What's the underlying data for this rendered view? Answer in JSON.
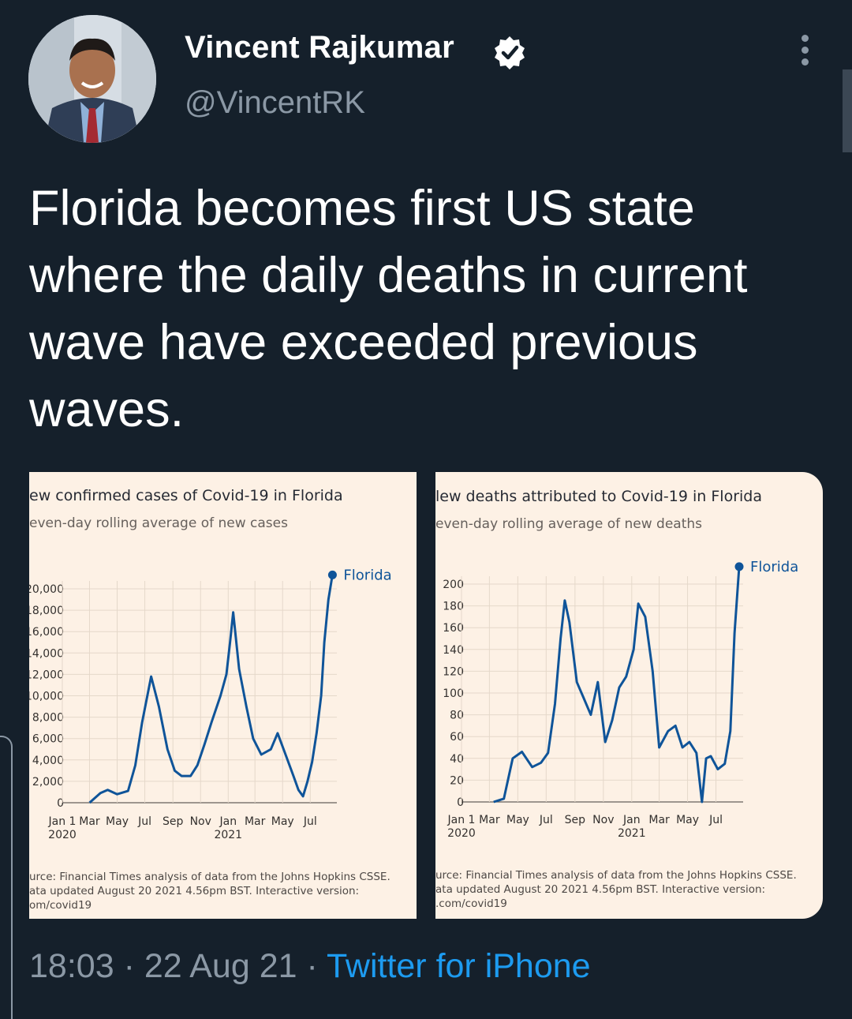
{
  "author": {
    "name": "Vincent Rajkumar",
    "handle": "@VincentRK",
    "verified": true,
    "avatar": "author-avatar-photo"
  },
  "tweet": {
    "text_lines": [
      "Florida becomes first US state",
      "where the daily deaths in current",
      "wave have exceeded previous",
      "waves."
    ]
  },
  "meta": {
    "time": "18:03",
    "sep1": "·",
    "date": "22 Aug 21",
    "sep2": "·",
    "source": "Twitter for iPhone"
  },
  "colors": {
    "background": "#15202b",
    "link": "#1d9bf0",
    "muted": "#8b98a5",
    "chart_bg": "#fdf1e5",
    "series": "#0f5499"
  },
  "icons": {
    "verified": "verified-badge-icon",
    "more": "more-options-icon"
  },
  "chart_data": [
    {
      "type": "line",
      "title": "ew confirmed cases of Covid-19 in Florida",
      "subtitle": "even-day rolling average of new cases",
      "y_tick_labels": [
        "0",
        "2,000",
        "4,000",
        "6,000",
        "8,000",
        "10,000",
        "12,000",
        "14,000",
        "16,000",
        "18,000",
        "20,000"
      ],
      "y_tick_label_top": "20,000",
      "ylim": [
        0,
        20000
      ],
      "x_tick_labels": [
        "Jan 1",
        "Mar",
        "May",
        "Jul",
        "Sep",
        "Nov",
        "Jan",
        "Mar",
        "May",
        "Jul"
      ],
      "x_year_labels": [
        "2020",
        "2021"
      ],
      "legend": "Florida",
      "legend_position": "top-right",
      "source_lines": [
        "urce: Financial Times analysis of data from the Johns Hopkins CSSE.",
        "ata updated August 20 2021 4.56pm BST. Interactive version:",
        "om/covid19"
      ],
      "series": [
        {
          "name": "Florida",
          "x": [
            "2020-03-01",
            "2020-03-25",
            "2020-04-10",
            "2020-05-01",
            "2020-05-25",
            "2020-06-10",
            "2020-06-25",
            "2020-07-15",
            "2020-08-01",
            "2020-08-20",
            "2020-09-05",
            "2020-09-20",
            "2020-10-10",
            "2020-10-25",
            "2020-11-10",
            "2020-11-25",
            "2020-12-15",
            "2020-12-28",
            "2021-01-05",
            "2021-01-12",
            "2021-01-25",
            "2021-02-10",
            "2021-02-25",
            "2021-03-15",
            "2021-04-05",
            "2021-04-20",
            "2021-05-05",
            "2021-05-25",
            "2021-06-05",
            "2021-06-15",
            "2021-06-25",
            "2021-07-05",
            "2021-07-15",
            "2021-07-25",
            "2021-08-01",
            "2021-08-10",
            "2021-08-19"
          ],
          "y": [
            0,
            900,
            1200,
            800,
            1100,
            3500,
            7500,
            11800,
            9000,
            5000,
            3000,
            2500,
            2500,
            3500,
            5500,
            7500,
            10000,
            12000,
            15000,
            17800,
            12500,
            9000,
            6000,
            4500,
            5000,
            6500,
            4800,
            2500,
            1200,
            600,
            2000,
            3800,
            6500,
            10000,
            15000,
            19000,
            21300
          ]
        }
      ]
    },
    {
      "type": "line",
      "title": "lew deaths attributed to Covid-19 in Florida",
      "subtitle": "even-day rolling average of new deaths",
      "y_tick_labels": [
        "0",
        "20",
        "40",
        "60",
        "80",
        "100",
        "120",
        "140",
        "160",
        "180",
        "200"
      ],
      "y_tick_label_top": "200",
      "ylim": [
        0,
        200
      ],
      "x_tick_labels": [
        "Jan 1",
        "Mar",
        "May",
        "Jul",
        "Sep",
        "Nov",
        "Jan",
        "Mar",
        "May",
        "Jul"
      ],
      "x_year_labels": [
        "2020",
        "2021"
      ],
      "legend": "Florida",
      "legend_position": "top-right",
      "source_lines": [
        "urce: Financial Times analysis of data from the Johns Hopkins CSSE.",
        "ata updated August 20 2021 4.56pm BST. Interactive version:",
        ".com/covid19"
      ],
      "series": [
        {
          "name": "Florida",
          "x": [
            "2020-03-10",
            "2020-04-01",
            "2020-04-20",
            "2020-05-10",
            "2020-06-01",
            "2020-06-20",
            "2020-07-05",
            "2020-07-20",
            "2020-08-01",
            "2020-08-10",
            "2020-08-20",
            "2020-09-05",
            "2020-09-20",
            "2020-10-05",
            "2020-10-20",
            "2020-11-05",
            "2020-11-20",
            "2020-12-05",
            "2020-12-20",
            "2021-01-05",
            "2021-01-15",
            "2021-01-30",
            "2021-02-15",
            "2021-03-01",
            "2021-03-20",
            "2021-04-05",
            "2021-04-20",
            "2021-05-05",
            "2021-05-20",
            "2021-06-01",
            "2021-06-10",
            "2021-06-20",
            "2021-07-05",
            "2021-07-20",
            "2021-08-01",
            "2021-08-10",
            "2021-08-20"
          ],
          "y": [
            0,
            3,
            40,
            46,
            32,
            36,
            45,
            90,
            150,
            185,
            165,
            110,
            95,
            80,
            110,
            55,
            75,
            105,
            115,
            140,
            182,
            170,
            120,
            50,
            65,
            70,
            50,
            55,
            45,
            0,
            40,
            42,
            30,
            35,
            65,
            155,
            216
          ]
        }
      ]
    }
  ]
}
